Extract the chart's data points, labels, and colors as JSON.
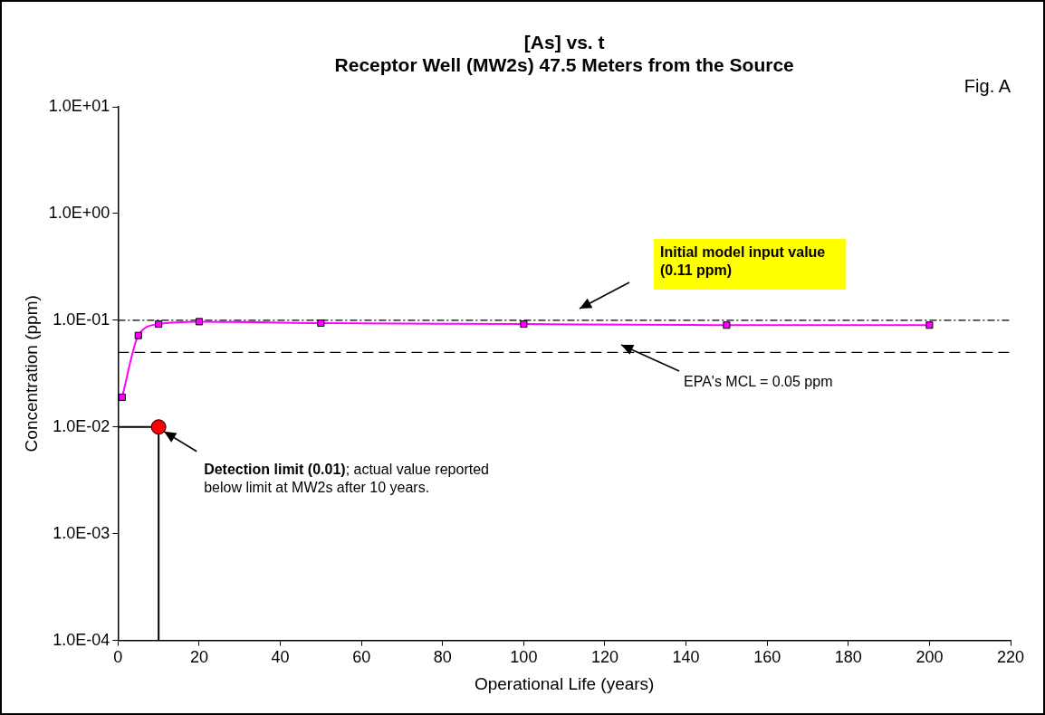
{
  "chart_data": {
    "type": "line",
    "title": "[As] vs. t",
    "subtitle": "Receptor Well (MW2s) 47.5 Meters from the Source",
    "xlabel": "Operational Life (years)",
    "ylabel": "Concentration (ppm)",
    "series": [
      {
        "type": "line",
        "color": "#ff00ff",
        "marker": "square",
        "x": [
          1,
          5,
          10,
          20,
          50,
          100,
          150,
          200
        ],
        "values": [
          0.019,
          0.072,
          0.092,
          0.097,
          0.094,
          0.092,
          0.09,
          0.09
        ]
      },
      {
        "type": "line",
        "color": "#000000",
        "marker": "none",
        "x": [
          0,
          10,
          10
        ],
        "values": [
          0.01,
          0.01,
          0.0001
        ]
      },
      {
        "type": "scatter",
        "color": "#ff0000",
        "marker": "circle",
        "x": [
          10
        ],
        "values": [
          0.01
        ]
      }
    ],
    "xlim": [
      0,
      220
    ],
    "xticks": [
      0,
      20,
      40,
      60,
      80,
      100,
      120,
      140,
      160,
      180,
      200,
      220
    ],
    "ylim": [
      0.0001,
      10
    ],
    "log": true,
    "yticks": [
      {
        "value": 0.0001,
        "label": "1.0E-04"
      },
      {
        "value": 0.001,
        "label": "1.0E-03"
      },
      {
        "value": 0.01,
        "label": "1.0E-02"
      },
      {
        "value": 0.1,
        "label": "1.0E-01"
      },
      {
        "value": 1,
        "label": "1.0E+00"
      },
      {
        "value": 10,
        "label": "1.0E+01"
      }
    ],
    "ref_lines": [
      {
        "axis": "y",
        "value": 0.1,
        "color": "#000000",
        "line_style": "dotted"
      },
      {
        "axis": "y",
        "value": 0.05,
        "color": "#000000",
        "line_style": "dashed"
      }
    ],
    "annotations": [
      "Fig. A",
      "Initial model input value (0.11 ppm)",
      "EPA's MCL = 0.05 ppm",
      {
        "text": "Detection limit (0.01); actual value reported below limit at MW2s after 10 years.",
        "x": 10,
        "y": 0.01
      }
    ],
    "grid": false,
    "legend": false
  }
}
